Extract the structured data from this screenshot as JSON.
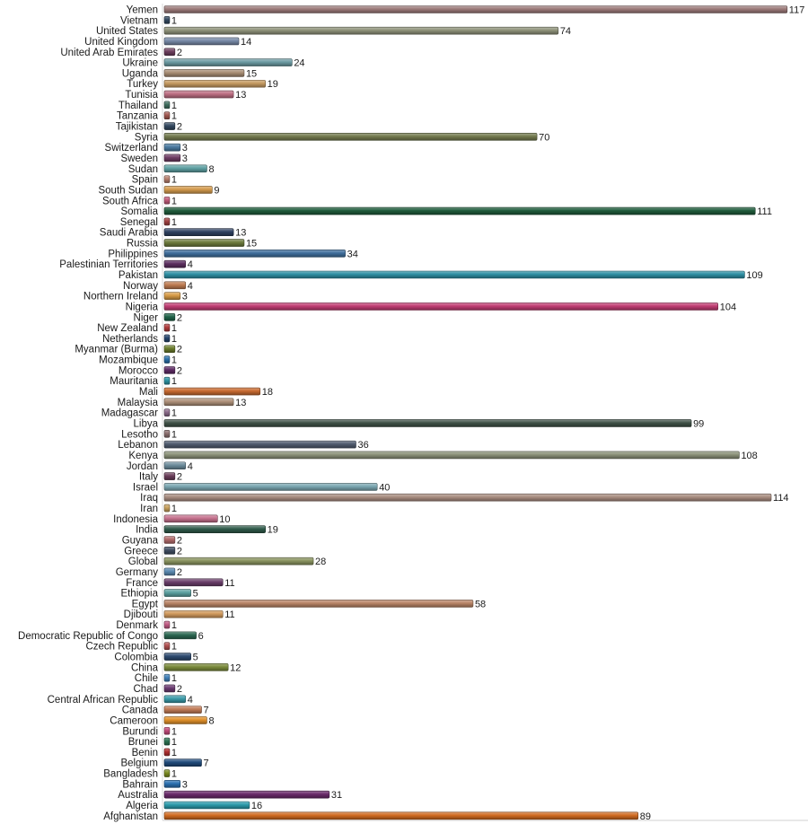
{
  "chart_data": {
    "type": "bar",
    "orientation": "horizontal",
    "title": "",
    "xlabel": "",
    "ylabel": "",
    "grid": false,
    "legend": "none",
    "xlim": [
      0,
      117
    ],
    "categories": [
      "Yemen",
      "Vietnam",
      "United States",
      "United Kingdom",
      "United Arab Emirates",
      "Ukraine",
      "Uganda",
      "Turkey",
      "Tunisia",
      "Thailand",
      "Tanzania",
      "Tajikistan",
      "Syria",
      "Switzerland",
      "Sweden",
      "Sudan",
      "Spain",
      "South Sudan",
      "South Africa",
      "Somalia",
      "Senegal",
      "Saudi Arabia",
      "Russia",
      "Philippines",
      "Palestinian Territories",
      "Pakistan",
      "Norway",
      "Northern Ireland",
      "Nigeria",
      "Niger",
      "New Zealand",
      "Netherlands",
      "Myanmar (Burma)",
      "Mozambique",
      "Morocco",
      "Mauritania",
      "Mali",
      "Malaysia",
      "Madagascar",
      "Libya",
      "Lesotho",
      "Lebanon",
      "Kenya",
      "Jordan",
      "Italy",
      "Israel",
      "Iraq",
      "Iran",
      "Indonesia",
      "India",
      "Guyana",
      "Greece",
      "Global",
      "Germany",
      "France",
      "Ethiopia",
      "Egypt",
      "Djibouti",
      "Denmark",
      "Democratic Republic of Congo",
      "Czech Republic",
      "Colombia",
      "China",
      "Chile",
      "Chad",
      "Central African Republic",
      "Canada",
      "Cameroon",
      "Burundi",
      "Brunei",
      "Benin",
      "Belgium",
      "Bangladesh",
      "Bahrain",
      "Australia",
      "Algeria",
      "Afghanistan"
    ],
    "values": [
      117,
      1,
      74,
      14,
      2,
      24,
      15,
      19,
      13,
      1,
      1,
      2,
      70,
      3,
      3,
      8,
      1,
      9,
      1,
      111,
      1,
      13,
      15,
      34,
      4,
      109,
      4,
      3,
      104,
      2,
      1,
      1,
      2,
      1,
      2,
      1,
      18,
      13,
      1,
      99,
      1,
      36,
      108,
      4,
      2,
      40,
      114,
      1,
      10,
      19,
      2,
      2,
      28,
      2,
      11,
      5,
      58,
      11,
      1,
      6,
      1,
      5,
      12,
      1,
      2,
      4,
      7,
      8,
      1,
      1,
      1,
      7,
      1,
      3,
      31,
      16,
      89
    ],
    "colors": [
      "#9b7a79",
      "#33485f",
      "#8f927a",
      "#7688a6",
      "#6d3e5d",
      "#6b9aa2",
      "#a78c73",
      "#c59a60",
      "#bd6f83",
      "#3f6d5e",
      "#a1574f",
      "#33485f",
      "#737a4e",
      "#4a7aa0",
      "#6e3c63",
      "#5ea0a2",
      "#b57e6d",
      "#d39a4d",
      "#c05a7a",
      "#1f5b3b",
      "#a04040",
      "#2e4060",
      "#6c7a3c",
      "#3f6e9c",
      "#5c2f60",
      "#2c8ea3",
      "#bd7a50",
      "#d69a45",
      "#c03d73",
      "#1f6248",
      "#b03a3a",
      "#23426a",
      "#697a2a",
      "#2a6fa8",
      "#5d2a63",
      "#2c93a3",
      "#c86a30",
      "#ad8f78",
      "#8a6a89",
      "#3f5147",
      "#8b6f6e",
      "#4f5a6e",
      "#8a9178",
      "#6b8a9a",
      "#6a3d59",
      "#7aa6b0",
      "#a88c80",
      "#c7a05c",
      "#c4708c",
      "#2f5a4a",
      "#b06a6a",
      "#3f4d61",
      "#8a9460",
      "#5a89b0",
      "#6a3e6a",
      "#5aa0a0",
      "#b88466",
      "#d0995c",
      "#c05a83",
      "#2a6650",
      "#b05050",
      "#2d4a6f",
      "#7a8a3c",
      "#4080b8",
      "#6a3a70",
      "#3a9aa8",
      "#c07a55",
      "#e0902a",
      "#c04a7a",
      "#2a7050",
      "#b03030",
      "#1f4a7a",
      "#7a8a20",
      "#2a70b0",
      "#6a2a6a",
      "#2a9aaa",
      "#d06a20"
    ]
  }
}
